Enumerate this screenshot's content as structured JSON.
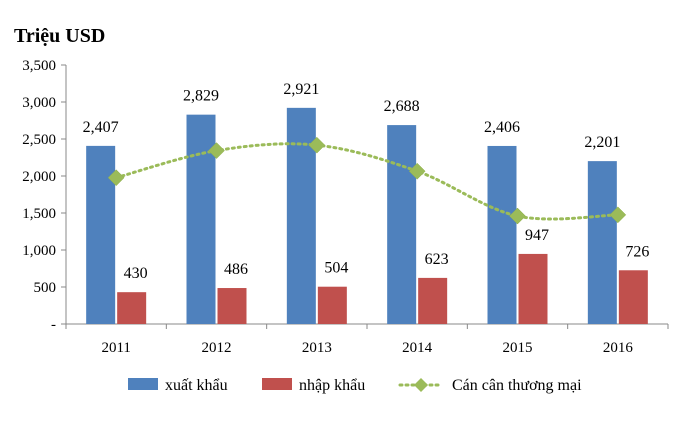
{
  "unit_title": "Triệu USD",
  "colors": {
    "export": "#4F81BD",
    "import": "#C0504D",
    "balance": "#9BBB59",
    "axis": "#888888",
    "grid": "none"
  },
  "chart_data": {
    "type": "bar",
    "title": "",
    "xlabel": "",
    "ylabel": "Triệu USD",
    "categories": [
      "2011",
      "2012",
      "2013",
      "2014",
      "2015",
      "2016"
    ],
    "ylim": [
      0,
      3500
    ],
    "yticks": [
      0,
      500,
      1000,
      1500,
      2000,
      2500,
      3000,
      3500
    ],
    "ytick_labels": [
      "-",
      "500",
      "1,000",
      "1,500",
      "2,000",
      "2,500",
      "3,000",
      "3,500"
    ],
    "grid": false,
    "legend_position": "bottom",
    "series": [
      {
        "name": "xuất khẩu",
        "type": "bar",
        "values": [
          2407,
          2829,
          2921,
          2688,
          2406,
          2201
        ],
        "labels": [
          "2,407",
          "2,829",
          "2,921",
          "2,688",
          "2,406",
          "2,201"
        ]
      },
      {
        "name": "nhập khẩu",
        "type": "bar",
        "values": [
          430,
          486,
          504,
          623,
          947,
          726
        ],
        "labels": [
          "430",
          "486",
          "504",
          "623",
          "947",
          "726"
        ]
      },
      {
        "name": "Cán cân thương mại",
        "type": "line",
        "style": "dotted-smooth",
        "marker": "diamond",
        "values": [
          1977,
          2343,
          2417,
          2065,
          1459,
          1475
        ]
      }
    ]
  }
}
